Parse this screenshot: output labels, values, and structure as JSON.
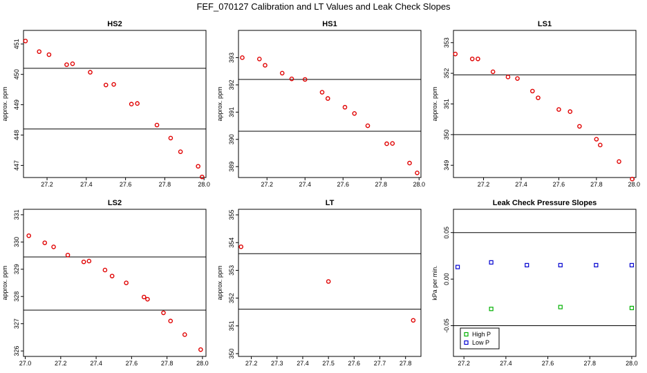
{
  "figure_title": "FEF_070127  Calibration and LT Values and Leak Check Slopes",
  "colors": {
    "red": "#e00000",
    "green": "#00b000",
    "blue": "#0000d0",
    "frame": "#000000"
  },
  "chart_data": [
    {
      "type": "scatter",
      "title": "HS2",
      "ylabel": "approx. ppm",
      "xlim": [
        27.08,
        28.01
      ],
      "ylim": [
        446.6,
        451.45
      ],
      "xticks": [
        27.2,
        27.4,
        27.6,
        27.8,
        28.0
      ],
      "xtick_labels": [
        "27.2",
        "27.4",
        "27.6",
        "27.8",
        "28.0"
      ],
      "yticks": [
        447,
        448,
        449,
        450,
        451
      ],
      "ytick_labels": [
        "447",
        "448",
        "449",
        "450",
        "451"
      ],
      "hlines": [
        450.2,
        448.2
      ],
      "series": [
        {
          "name": "values",
          "color": "#e00000",
          "x": [
            27.09,
            27.16,
            27.21,
            27.3,
            27.33,
            27.42,
            27.5,
            27.54,
            27.63,
            27.66,
            27.76,
            27.83,
            27.88,
            27.97,
            27.99
          ],
          "y": [
            451.1,
            450.75,
            450.65,
            450.32,
            450.35,
            450.07,
            449.65,
            449.67,
            449.02,
            449.04,
            448.33,
            447.9,
            447.45,
            446.97,
            446.62
          ]
        }
      ]
    },
    {
      "type": "scatter",
      "title": "HS1",
      "ylabel": "approx. ppm",
      "xlim": [
        27.05,
        28.01
      ],
      "ylim": [
        388.6,
        394.0
      ],
      "xticks": [
        27.2,
        27.4,
        27.6,
        27.8,
        28.0
      ],
      "xtick_labels": [
        "27.2",
        "27.4",
        "27.6",
        "27.8",
        "28.0"
      ],
      "yticks": [
        389,
        390,
        391,
        392,
        393
      ],
      "ytick_labels": [
        "389",
        "390",
        "391",
        "392",
        "393"
      ],
      "hlines": [
        392.2,
        390.3
      ],
      "series": [
        {
          "name": "values",
          "color": "#e00000",
          "x": [
            27.07,
            27.16,
            27.19,
            27.28,
            27.33,
            27.4,
            27.49,
            27.52,
            27.61,
            27.66,
            27.73,
            27.83,
            27.86,
            27.95,
            27.99
          ],
          "y": [
            393.0,
            392.95,
            392.72,
            392.43,
            392.22,
            392.2,
            391.73,
            391.5,
            391.18,
            390.95,
            390.5,
            389.84,
            389.85,
            389.13,
            388.77
          ]
        }
      ]
    },
    {
      "type": "scatter",
      "title": "LS1",
      "ylabel": "approx. ppm",
      "xlim": [
        27.04,
        28.01
      ],
      "ylim": [
        348.6,
        353.4
      ],
      "xticks": [
        27.2,
        27.4,
        27.6,
        27.8,
        28.0
      ],
      "xtick_labels": [
        "27.2",
        "27.4",
        "27.6",
        "27.8",
        "28.0"
      ],
      "yticks": [
        349,
        350,
        351,
        352,
        353
      ],
      "ytick_labels": [
        "349",
        "350",
        "351",
        "352",
        "353"
      ],
      "hlines": [
        351.95,
        350.0
      ],
      "series": [
        {
          "name": "values",
          "color": "#e00000",
          "x": [
            27.05,
            27.14,
            27.17,
            27.25,
            27.33,
            27.38,
            27.46,
            27.49,
            27.6,
            27.66,
            27.71,
            27.8,
            27.82,
            27.92,
            27.99
          ],
          "y": [
            352.63,
            352.47,
            352.47,
            352.05,
            351.88,
            351.83,
            351.42,
            351.2,
            350.82,
            350.75,
            350.27,
            349.85,
            349.66,
            349.12,
            348.55
          ]
        }
      ]
    },
    {
      "type": "scatter",
      "title": "LS2",
      "ylabel": "approx. ppm",
      "xlim": [
        26.99,
        28.02
      ],
      "ylim": [
        325.8,
        331.2
      ],
      "xticks": [
        27.0,
        27.2,
        27.4,
        27.6,
        27.8,
        28.0
      ],
      "xtick_labels": [
        "27.0",
        "27.2",
        "27.4",
        "27.6",
        "27.8",
        "28.0"
      ],
      "yticks": [
        326,
        327,
        328,
        329,
        330,
        331
      ],
      "ytick_labels": [
        "326",
        "327",
        "328",
        "329",
        "330",
        "331"
      ],
      "hlines": [
        329.45,
        327.5
      ],
      "series": [
        {
          "name": "values",
          "color": "#e00000",
          "x": [
            27.02,
            27.11,
            27.16,
            27.24,
            27.33,
            27.36,
            27.45,
            27.49,
            27.57,
            27.67,
            27.69,
            27.78,
            27.82,
            27.9,
            27.99
          ],
          "y": [
            330.23,
            329.97,
            329.82,
            329.52,
            329.27,
            329.3,
            328.97,
            328.75,
            328.5,
            327.98,
            327.9,
            327.4,
            327.1,
            326.6,
            326.05
          ]
        }
      ]
    },
    {
      "type": "scatter",
      "title": "LT",
      "ylabel": "approx. ppm",
      "xlim": [
        27.15,
        27.86
      ],
      "ylim": [
        349.9,
        355.2
      ],
      "xticks": [
        27.2,
        27.3,
        27.4,
        27.5,
        27.6,
        27.7,
        27.8
      ],
      "xtick_labels": [
        "27.2",
        "27.3",
        "27.4",
        "27.5",
        "27.6",
        "27.7",
        "27.8"
      ],
      "yticks": [
        350,
        351,
        352,
        353,
        354,
        355
      ],
      "ytick_labels": [
        "350",
        "351",
        "352",
        "353",
        "354",
        "355"
      ],
      "hlines": [
        353.6,
        351.6
      ],
      "series": [
        {
          "name": "values",
          "color": "#e00000",
          "x": [
            27.16,
            27.5,
            27.83
          ],
          "y": [
            353.85,
            352.6,
            351.2
          ]
        }
      ]
    },
    {
      "type": "scatter",
      "title": "Leak Check Pressure Slopes",
      "ylabel": "kPa per min.",
      "xlim": [
        27.15,
        28.02
      ],
      "ylim": [
        -0.083,
        0.075
      ],
      "xticks": [
        27.2,
        27.4,
        27.6,
        27.8,
        28.0
      ],
      "xtick_labels": [
        "27.2",
        "27.4",
        "27.6",
        "27.8",
        "28.0"
      ],
      "yticks": [
        -0.05,
        0.0,
        0.05
      ],
      "ytick_labels": [
        "-0.05",
        "0.00",
        "0.05"
      ],
      "hlines": [
        0.05,
        -0.05
      ],
      "legend": {
        "position": "bottom-left",
        "entries": [
          "High P",
          "Low P"
        ]
      },
      "series": [
        {
          "name": "High P",
          "color": "#00b000",
          "marker": "square",
          "x": [
            27.33,
            27.66,
            28.0
          ],
          "y": [
            -0.032,
            -0.03,
            -0.031
          ]
        },
        {
          "name": "Low P",
          "color": "#0000d0",
          "marker": "square",
          "x": [
            27.17,
            27.33,
            27.5,
            27.66,
            27.83,
            28.0
          ],
          "y": [
            0.013,
            0.018,
            0.015,
            0.015,
            0.015,
            0.015
          ]
        }
      ]
    }
  ]
}
